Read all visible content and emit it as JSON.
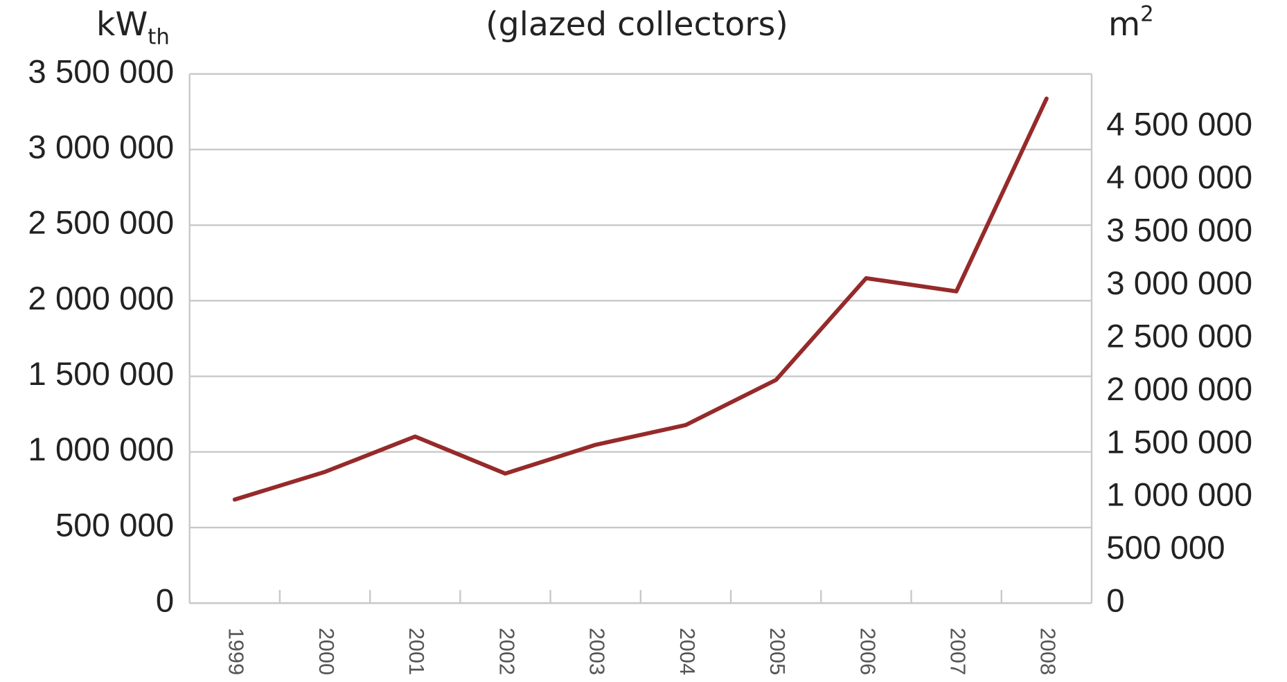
{
  "chart_data": {
    "type": "line",
    "title": "(glazed collectors)",
    "y_label": "kW",
    "y_label_sub": "th",
    "y2_label": "m",
    "y2_label_sup": "2",
    "categories": [
      "1999",
      "2000",
      "2001",
      "2002",
      "2003",
      "2004",
      "2005",
      "2006",
      "2007",
      "2008"
    ],
    "series": [
      {
        "color": "#962a2a",
        "values": [
          685000,
          868000,
          1102000,
          857000,
          1047000,
          1178000,
          1476000,
          2149000,
          2062000,
          3337000
        ]
      }
    ],
    "ylim": [
      0,
      3500000
    ],
    "yticks": [
      0,
      {
        "value": 500000,
        "label": "500 000"
      },
      {
        "value": 1000000,
        "label": "1 000 000"
      },
      {
        "value": 1500000,
        "label": "1 500 000"
      },
      {
        "value": 2000000,
        "label": "2 000 000"
      },
      {
        "value": 2500000,
        "label": "2 500 000"
      },
      {
        "value": 3000000,
        "label": "3 000 000"
      },
      {
        "value": 3500000,
        "label": "3 500 000"
      }
    ],
    "y2lim": [
      0,
      5000000
    ],
    "y2ticks": [
      0,
      {
        "value": 500000,
        "label": "500 000"
      },
      {
        "value": 1000000,
        "label": "1 000 000"
      },
      {
        "value": 1500000,
        "label": "1 500 000"
      },
      {
        "value": 2000000,
        "label": "2 000 000"
      },
      {
        "value": 2500000,
        "label": "2 500 000"
      },
      {
        "value": 3000000,
        "label": "3 000 000"
      },
      {
        "value": 3500000,
        "label": "3 500 000"
      },
      {
        "value": 4000000,
        "label": "4 000 000"
      },
      {
        "value": 4500000,
        "label": "4 500 000"
      }
    ],
    "grid": true
  }
}
